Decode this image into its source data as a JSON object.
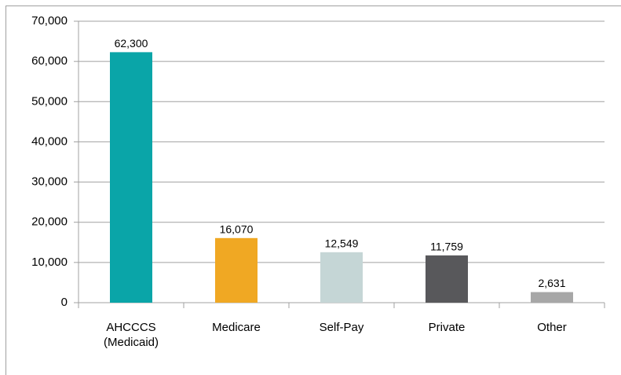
{
  "chart_data": {
    "type": "bar",
    "categories": [
      "AHCCCS (Medicaid)",
      "Medicare",
      "Self-Pay",
      "Private",
      "Other"
    ],
    "values": [
      62300,
      16070,
      12549,
      11759,
      2631
    ],
    "value_labels": [
      "62,300",
      "16,070",
      "12,549",
      "11,759",
      "2,631"
    ],
    "colors": [
      "#0aa5a8",
      "#f0a823",
      "#c5d6d6",
      "#58585b",
      "#a7a7a7"
    ],
    "ylim": [
      0,
      70000
    ],
    "yticks": [
      0,
      {
        "value": 10000,
        "label": "10,000"
      },
      {
        "value": 20000,
        "label": "20,000"
      },
      {
        "value": 30000,
        "label": "30,000"
      },
      {
        "value": 40000,
        "label": "40,000"
      },
      {
        "value": 50000,
        "label": "50,000"
      },
      {
        "value": 60000,
        "label": "60,000"
      },
      {
        "value": 70000,
        "label": "70,000"
      }
    ],
    "grid": true
  }
}
